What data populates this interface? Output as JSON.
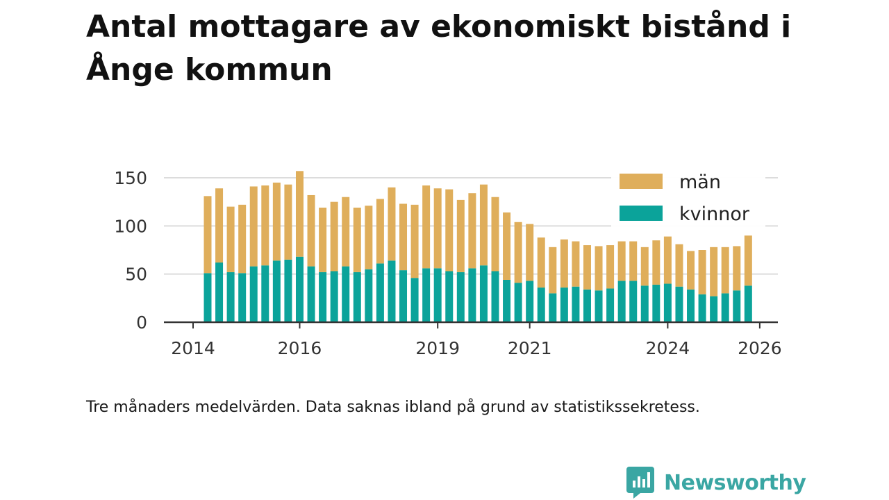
{
  "title": "Antal mottagare av ekonomiskt bistånd i Ånge kommun",
  "caption": "Tre månaders medelvärden. Data saknas ibland på grund av statistikssekretess.",
  "brand": {
    "name": "Newsworthy",
    "icon": "newsworthy-logo-icon",
    "color": "#3aa6a3"
  },
  "chart_data": {
    "type": "bar",
    "stacked": true,
    "title": "Antal mottagare av ekonomiskt bistånd i Ånge kommun",
    "xlabel": "",
    "ylabel": "",
    "ylim": [
      0,
      160
    ],
    "yticks": [
      0,
      50,
      100,
      150
    ],
    "xticks": [
      {
        "label": "2014",
        "index": 0
      },
      {
        "label": "2016",
        "index": 8
      },
      {
        "label": "2019",
        "index": 20
      },
      {
        "label": "2021",
        "index": 28
      },
      {
        "label": "2024",
        "index": 40
      },
      {
        "label": "2026",
        "index": 48
      }
    ],
    "legend_position": "top-right",
    "series": [
      {
        "name": "kvinnor",
        "color": "#0ba39a",
        "values": [
          51,
          62,
          52,
          51,
          58,
          59,
          64,
          65,
          68,
          58,
          52,
          53,
          58,
          52,
          55,
          61,
          64,
          54,
          46,
          56,
          56,
          53,
          52,
          56,
          59,
          53,
          44,
          41,
          43,
          36,
          30,
          36,
          37,
          34,
          33,
          35,
          43,
          43,
          38,
          39,
          40,
          37,
          34,
          29,
          27,
          30,
          33,
          38
        ]
      },
      {
        "name": "män",
        "color": "#dfae5b",
        "values": [
          80,
          77,
          68,
          71,
          83,
          83,
          81,
          78,
          89,
          74,
          67,
          72,
          72,
          67,
          66,
          67,
          76,
          69,
          76,
          86,
          83,
          85,
          75,
          78,
          84,
          77,
          70,
          63,
          59,
          52,
          48,
          50,
          47,
          46,
          46,
          45,
          41,
          41,
          40,
          46,
          49,
          44,
          40,
          46,
          51,
          48,
          46,
          52
        ]
      }
    ]
  }
}
